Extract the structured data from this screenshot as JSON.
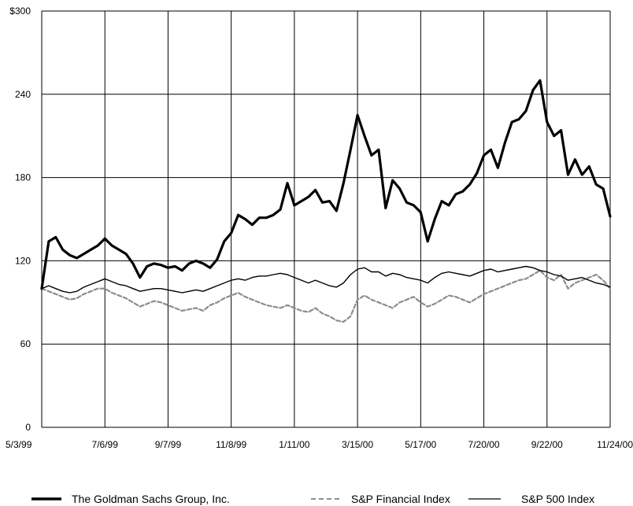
{
  "chart_data": {
    "type": "line",
    "title": "",
    "xlabel": "",
    "ylabel": "",
    "ylim": [
      0,
      300
    ],
    "grid": true,
    "legend_position": "bottom",
    "x_ticks": [
      "5/3/99",
      "7/6/99",
      "9/7/99",
      "11/8/99",
      "1/11/00",
      "3/15/00",
      "5/17/00",
      "7/20/00",
      "9/22/00",
      "11/24/00"
    ],
    "y_ticks": [
      {
        "value": 0,
        "label": "0"
      },
      {
        "value": 60,
        "label": "60"
      },
      {
        "value": 120,
        "label": "120"
      },
      {
        "value": 180,
        "label": "180"
      },
      {
        "value": 240,
        "label": "240"
      },
      {
        "value": 300,
        "label": "$300"
      }
    ],
    "x": [
      "5/3/99",
      "5/10/99",
      "5/17/99",
      "5/24/99",
      "6/1/99",
      "6/8/99",
      "6/15/99",
      "6/22/99",
      "6/29/99",
      "7/6/99",
      "7/13/99",
      "7/20/99",
      "7/27/99",
      "8/3/99",
      "8/10/99",
      "8/17/99",
      "8/24/99",
      "8/31/99",
      "9/7/99",
      "9/14/99",
      "9/21/99",
      "9/28/99",
      "10/5/99",
      "10/12/99",
      "10/19/99",
      "10/26/99",
      "11/1/99",
      "11/8/99",
      "11/15/99",
      "11/22/99",
      "11/29/99",
      "12/6/99",
      "12/13/99",
      "12/20/99",
      "12/27/99",
      "1/3/00",
      "1/11/00",
      "1/18/00",
      "1/25/00",
      "2/1/00",
      "2/8/00",
      "2/15/00",
      "2/22/00",
      "3/1/00",
      "3/8/00",
      "3/15/00",
      "3/22/00",
      "3/29/00",
      "4/5/00",
      "4/12/00",
      "4/19/00",
      "4/26/00",
      "5/3/00",
      "5/10/00",
      "5/17/00",
      "5/24/00",
      "5/31/00",
      "6/7/00",
      "6/14/00",
      "6/21/00",
      "6/28/00",
      "7/5/00",
      "7/12/00",
      "7/20/00",
      "7/27/00",
      "8/3/00",
      "8/10/00",
      "8/17/00",
      "8/24/00",
      "8/31/00",
      "9/8/00",
      "9/15/00",
      "9/22/00",
      "9/29/00",
      "10/6/00",
      "10/13/00",
      "10/20/00",
      "10/27/00",
      "11/3/00",
      "11/10/00",
      "11/17/00",
      "11/24/00"
    ],
    "series": [
      {
        "name": "The Goldman Sachs Group, Inc.",
        "style": "thick-solid",
        "color": "#000000",
        "values": [
          100,
          134,
          137,
          128,
          124,
          122,
          125,
          128,
          131,
          136,
          131,
          128,
          125,
          118,
          108,
          116,
          118,
          117,
          115,
          116,
          113,
          118,
          120,
          118,
          115,
          121,
          134,
          140,
          153,
          150,
          146,
          151,
          151,
          153,
          157,
          176,
          160,
          163,
          166,
          171,
          162,
          163,
          156,
          176,
          200,
          225,
          210,
          196,
          200,
          158,
          178,
          172,
          162,
          160,
          155,
          134,
          150,
          163,
          160,
          168,
          170,
          175,
          183,
          196,
          200,
          187,
          205,
          220,
          222,
          228,
          243,
          250,
          220,
          210,
          214,
          182,
          193,
          182,
          188,
          175,
          172,
          152
        ]
      },
      {
        "name": "S&P Financial Index",
        "style": "dashed-gray",
        "color": "#8c8c8c",
        "values": [
          100,
          98,
          96,
          94,
          92,
          93,
          96,
          98,
          100,
          100,
          97,
          95,
          93,
          90,
          87,
          89,
          91,
          90,
          88,
          86,
          84,
          85,
          86,
          84,
          88,
          90,
          93,
          95,
          97,
          94,
          92,
          90,
          88,
          87,
          86,
          88,
          86,
          84,
          83,
          86,
          82,
          80,
          77,
          76,
          80,
          92,
          95,
          92,
          90,
          88,
          86,
          90,
          92,
          94,
          90,
          87,
          89,
          92,
          95,
          94,
          92,
          90,
          93,
          96,
          98,
          100,
          102,
          104,
          106,
          107,
          110,
          113,
          108,
          106,
          110,
          100,
          104,
          106,
          108,
          110,
          106,
          100
        ]
      },
      {
        "name": "S&P 500 Index",
        "style": "thin-solid",
        "color": "#000000",
        "values": [
          100,
          102,
          100,
          98,
          97,
          98,
          101,
          103,
          105,
          107,
          105,
          103,
          102,
          100,
          98,
          99,
          100,
          100,
          99,
          98,
          97,
          98,
          99,
          98,
          100,
          102,
          104,
          106,
          107,
          106,
          108,
          109,
          109,
          110,
          111,
          110,
          108,
          106,
          104,
          106,
          104,
          102,
          101,
          104,
          110,
          114,
          115,
          112,
          112,
          109,
          111,
          110,
          108,
          107,
          106,
          104,
          108,
          111,
          112,
          111,
          110,
          109,
          111,
          113,
          114,
          112,
          113,
          114,
          115,
          116,
          115,
          113,
          112,
          110,
          109,
          106,
          107,
          108,
          106,
          104,
          103,
          101
        ]
      }
    ]
  },
  "legend": {
    "items": [
      {
        "label": "The Goldman Sachs Group, Inc."
      },
      {
        "label": "S&P Financial Index"
      },
      {
        "label": "S&P 500 Index"
      }
    ]
  }
}
